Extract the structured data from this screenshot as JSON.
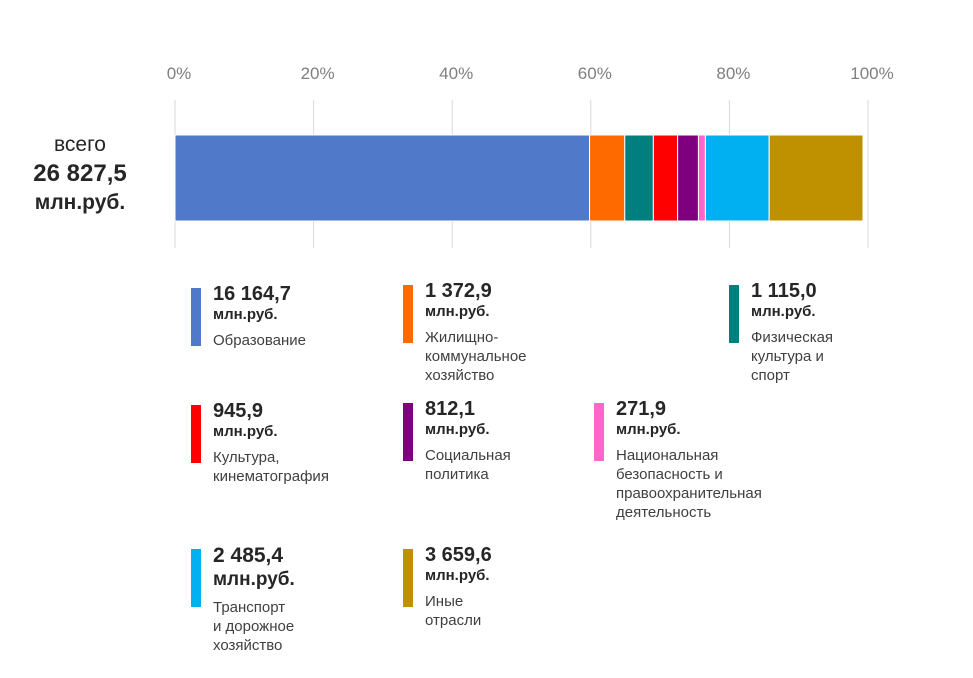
{
  "total": {
    "label": "всего",
    "value": "26 827,5",
    "unit": "млн.руб."
  },
  "chart_data": {
    "type": "bar",
    "stacked": true,
    "orientation": "horizontal",
    "x_ticks": [
      "0%",
      "20%",
      "40%",
      "60%",
      "80%",
      "100%"
    ],
    "xlim": [
      0,
      100
    ],
    "grid": true,
    "series": [
      {
        "name": "Образование",
        "value": 16164.7,
        "value_label": "16 164,7",
        "unit": "млн.руб.",
        "color": "#5079C9"
      },
      {
        "name": "Жилищно-коммунальное\nхозяйство",
        "value": 1372.9,
        "value_label": "1 372,9",
        "unit": "млн.руб.",
        "color": "#FF6A00"
      },
      {
        "name": "Физическая\nкультура и спорт",
        "value": 1115.0,
        "value_label": "1 115,0",
        "unit": "млн.руб.",
        "color": "#007F7F"
      },
      {
        "name": "Культура,\nкинематография",
        "value": 945.9,
        "value_label": "945,9",
        "unit": "млн.руб.",
        "color": "#FF0000"
      },
      {
        "name": "Социальная\nполитика",
        "value": 812.1,
        "value_label": "812,1",
        "unit": "млн.руб.",
        "color": "#7F007F"
      },
      {
        "name": "Национальная безопасность и\nправоохранительная деятельность",
        "value": 271.9,
        "value_label": "271,9",
        "unit": "млн.руб.",
        "color": "#FF66CC"
      },
      {
        "name": "Транспорт\nи дорожное\nхозяйство",
        "value": 2485.4,
        "value_label": "2 485,4",
        "unit": "млн.руб.",
        "color": "#00B0F0"
      },
      {
        "name": "Иные отрасли",
        "value": 3659.6,
        "value_label": "3 659,6",
        "unit": "млн.руб.",
        "color": "#BF9000"
      }
    ]
  }
}
